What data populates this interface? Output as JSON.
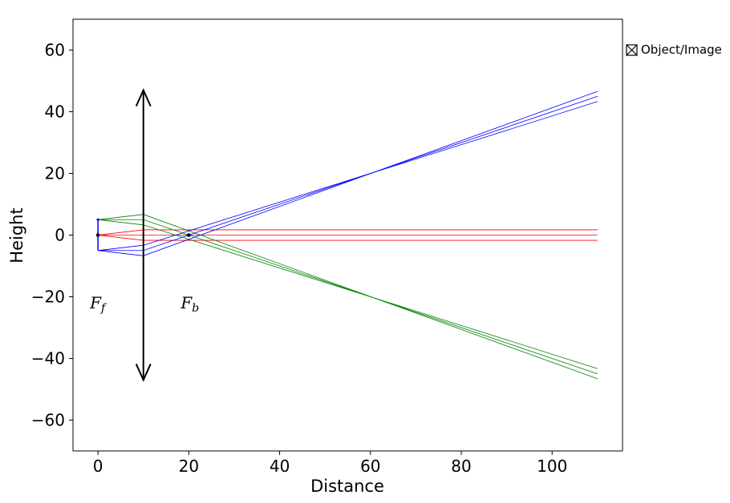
{
  "chart_data": {
    "type": "line",
    "xlabel": "Distance",
    "ylabel": "Height",
    "xlim": [
      -5.5,
      115.5
    ],
    "ylim": [
      -70,
      70
    ],
    "xticks": [
      0,
      20,
      40,
      60,
      80,
      100
    ],
    "yticks": [
      -60,
      -40,
      -20,
      0,
      20,
      40,
      60
    ],
    "xtick_labels": [
      "0",
      "20",
      "40",
      "60",
      "80",
      "100"
    ],
    "ytick_labels": [
      "−60",
      "−40",
      "−20",
      "0",
      "20",
      "40",
      "60"
    ],
    "lens": {
      "x": 10,
      "y_top": 47,
      "y_bottom": -47,
      "color": "#000000"
    },
    "object": {
      "x": 0,
      "y_top": 5,
      "y_bottom": -5,
      "color": "#0000ff"
    },
    "focal_points": [
      {
        "x": 0,
        "y": 0,
        "label": "F",
        "subscript": "f"
      },
      {
        "x": 20,
        "y": 0,
        "label": "F",
        "subscript": "b"
      }
    ],
    "focal_label_y": -22,
    "series": [
      {
        "color": "#ff0000",
        "rays": [
          [
            [
              0,
              0
            ],
            [
              10,
              1.7
            ],
            [
              110,
              1.7
            ]
          ],
          [
            [
              0,
              0
            ],
            [
              10,
              0
            ],
            [
              110,
              0
            ]
          ],
          [
            [
              0,
              0
            ],
            [
              10,
              -1.7
            ],
            [
              110,
              -1.7
            ]
          ]
        ]
      },
      {
        "color": "#008000",
        "rays": [
          [
            [
              0,
              5
            ],
            [
              10,
              6.7
            ],
            [
              110,
              -46.6
            ]
          ],
          [
            [
              0,
              5
            ],
            [
              10,
              5
            ],
            [
              110,
              -45
            ]
          ],
          [
            [
              0,
              5
            ],
            [
              10,
              3.3
            ],
            [
              110,
              -43.3
            ]
          ]
        ]
      },
      {
        "color": "#0000ff",
        "rays": [
          [
            [
              0,
              -5
            ],
            [
              10,
              -3.3
            ],
            [
              110,
              43.3
            ]
          ],
          [
            [
              0,
              -5
            ],
            [
              10,
              -5
            ],
            [
              110,
              45
            ]
          ],
          [
            [
              0,
              -5
            ],
            [
              10,
              -6.7
            ],
            [
              110,
              46.6
            ]
          ]
        ]
      }
    ],
    "legend": {
      "label": "Object/Image",
      "placement": "right"
    }
  }
}
